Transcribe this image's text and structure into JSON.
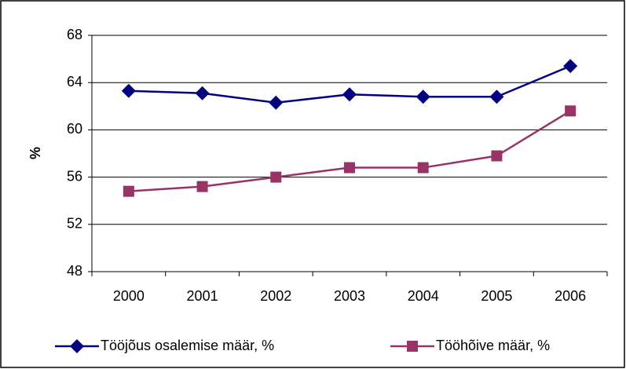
{
  "chart_data": {
    "type": "line",
    "y_label": "%",
    "categories": [
      "2000",
      "2001",
      "2002",
      "2003",
      "2004",
      "2005",
      "2006"
    ],
    "series": [
      {
        "name": "Tööjõus osalemise määr, %",
        "color": "#000080",
        "marker": "diamond",
        "values": [
          63.3,
          63.1,
          62.3,
          63.0,
          62.8,
          62.8,
          65.4
        ]
      },
      {
        "name": "Tööhõive määr, %",
        "color": "#993366",
        "marker": "square",
        "values": [
          54.8,
          55.2,
          56.0,
          56.8,
          56.8,
          57.8,
          61.6
        ]
      }
    ],
    "ylim": [
      48,
      68
    ],
    "yticks": [
      48,
      52,
      56,
      60,
      64,
      68
    ],
    "grid": true,
    "legend": "bottom"
  }
}
